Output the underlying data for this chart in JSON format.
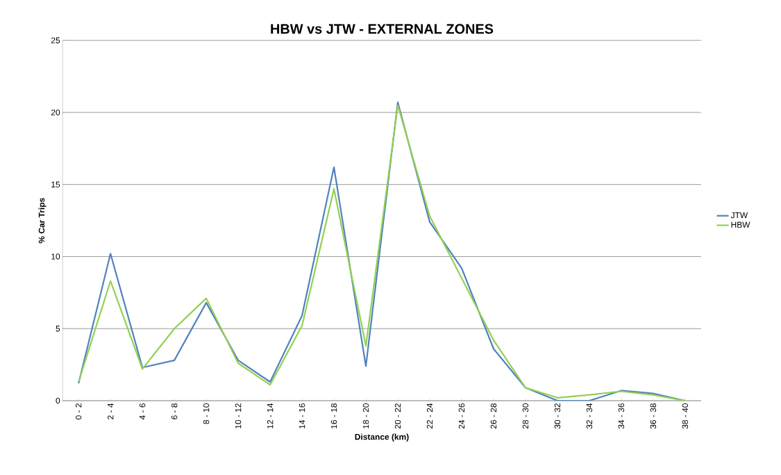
{
  "chart_data": {
    "type": "line",
    "title": "HBW vs JTW - EXTERNAL ZONES",
    "xlabel": "Distance (km)",
    "ylabel": "% Car Trips",
    "categories": [
      "0 - 2",
      "2 - 4",
      "4 - 6",
      "6 - 8",
      "8 - 10",
      "10 - 12",
      "12 - 14",
      "14 - 16",
      "16 - 18",
      "18 - 20",
      "20 - 22",
      "22 - 24",
      "24 - 26",
      "26 - 28",
      "28 - 30",
      "30 - 32",
      "32 - 34",
      "34 - 36",
      "36 - 38",
      "38 - 40"
    ],
    "series": [
      {
        "name": "JTW",
        "color": "#4f81bd",
        "values": [
          1.2,
          10.2,
          2.3,
          2.8,
          6.8,
          2.8,
          1.3,
          5.9,
          16.2,
          2.4,
          20.7,
          12.4,
          9.2,
          3.6,
          0.9,
          0.0,
          0.0,
          0.7,
          0.5,
          0.0
        ]
      },
      {
        "name": "HBW",
        "color": "#92d050",
        "values": [
          1.3,
          8.3,
          2.2,
          5.0,
          7.1,
          2.6,
          1.1,
          5.2,
          14.7,
          3.8,
          20.5,
          12.8,
          8.5,
          4.2,
          0.9,
          0.2,
          0.4,
          0.65,
          0.4,
          0.0
        ]
      }
    ],
    "ylim": [
      0,
      25
    ],
    "yticks": [
      0,
      5,
      10,
      15,
      20,
      25
    ],
    "grid": "y",
    "legend": "right"
  }
}
